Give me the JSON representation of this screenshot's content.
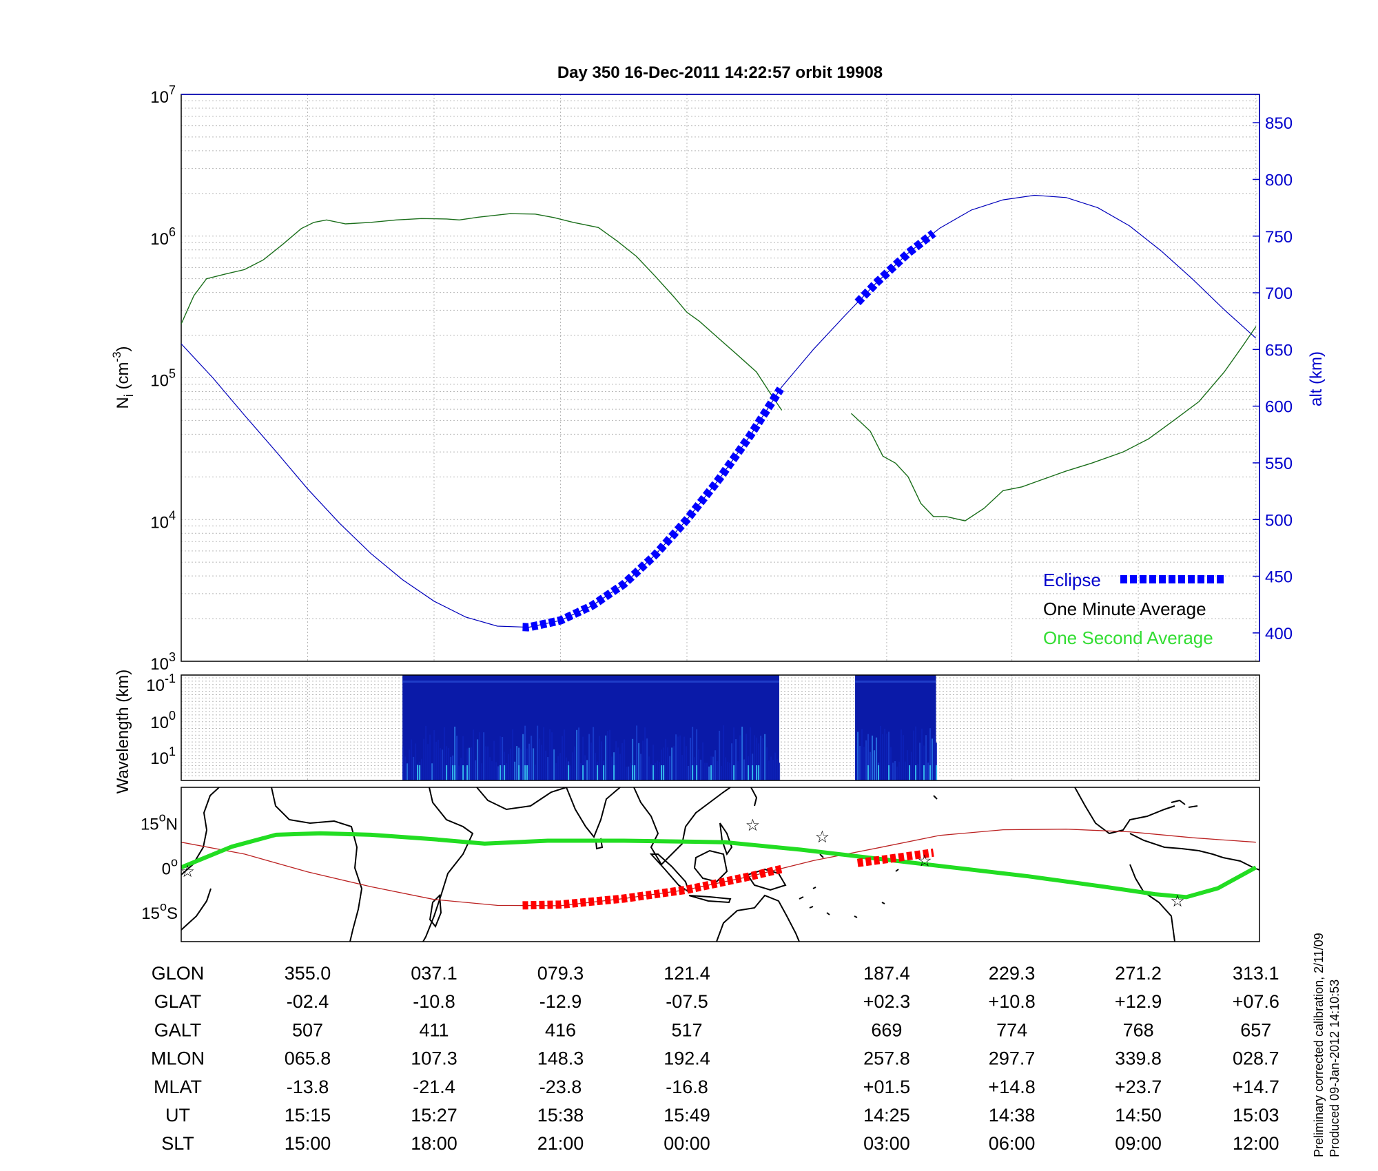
{
  "title": "Day 350  16-Dec-2011 14:22:57   orbit 19908",
  "colors": {
    "green_line": "#1a6e1a",
    "blue_line": "#0000bb",
    "eclipse": "#0000ff",
    "legend_green": "#33dd33",
    "track_green": "#22dd22",
    "track_red": "#bb2222",
    "eclipse_red": "#ff0000",
    "stars": "#cc33cc",
    "grid": "#b8b8b8",
    "axis_blue": "#0000cc"
  },
  "chart_data": [
    {
      "type": "line",
      "name": "Ni density and altitude",
      "y_left_label_base": "N",
      "y_left_label_sub": "i",
      "y_left_label_rest": " (cm",
      "y_left_label_sup": "-3",
      "y_left_label_end": ")",
      "y_left_scale": "log",
      "y_left_ticks": [
        {
          "base": "10",
          "exp": "3",
          "value": 1000
        },
        {
          "base": "10",
          "exp": "4",
          "value": 10000
        },
        {
          "base": "10",
          "exp": "5",
          "value": 100000
        },
        {
          "base": "10",
          "exp": "6",
          "value": 1000000
        },
        {
          "base": "10",
          "exp": "7",
          "value": 10000000
        }
      ],
      "y_right_label": "alt (km)",
      "y_right_ticks": [
        "400",
        "450",
        "500",
        "550",
        "600",
        "650",
        "700",
        "750",
        "800",
        "850"
      ],
      "y_right_range": [
        375,
        875
      ],
      "x_index_range": [
        0,
        8.5
      ],
      "grid": true,
      "legend_position": "bottom-right",
      "legend": [
        "Eclipse",
        "One Minute Average",
        "One Second Average"
      ],
      "density": [
        {
          "x": 0.0,
          "y": 240000
        },
        {
          "x": 0.1,
          "y": 380000
        },
        {
          "x": 0.2,
          "y": 500000
        },
        {
          "x": 0.35,
          "y": 540000
        },
        {
          "x": 0.5,
          "y": 580000
        },
        {
          "x": 0.65,
          "y": 680000
        },
        {
          "x": 0.8,
          "y": 870000
        },
        {
          "x": 0.95,
          "y": 1130000
        },
        {
          "x": 1.05,
          "y": 1250000
        },
        {
          "x": 1.15,
          "y": 1300000
        },
        {
          "x": 1.3,
          "y": 1220000
        },
        {
          "x": 1.5,
          "y": 1250000
        },
        {
          "x": 1.7,
          "y": 1300000
        },
        {
          "x": 1.9,
          "y": 1330000
        },
        {
          "x": 2.1,
          "y": 1320000
        },
        {
          "x": 2.2,
          "y": 1300000
        },
        {
          "x": 2.35,
          "y": 1360000
        },
        {
          "x": 2.6,
          "y": 1440000
        },
        {
          "x": 2.8,
          "y": 1430000
        },
        {
          "x": 2.95,
          "y": 1350000
        },
        {
          "x": 3.1,
          "y": 1250000
        },
        {
          "x": 3.3,
          "y": 1150000
        },
        {
          "x": 3.45,
          "y": 920000
        },
        {
          "x": 3.6,
          "y": 720000
        },
        {
          "x": 3.75,
          "y": 520000
        },
        {
          "x": 3.9,
          "y": 370000
        },
        {
          "x": 4.0,
          "y": 290000
        },
        {
          "x": 4.1,
          "y": 250000
        },
        {
          "x": 4.25,
          "y": 190000
        },
        {
          "x": 4.4,
          "y": 145000
        },
        {
          "x": 4.55,
          "y": 110000
        },
        {
          "x": 4.65,
          "y": 80000
        },
        {
          "x": 4.75,
          "y": 59000
        }
      ],
      "density_b": [
        {
          "x": 5.3,
          "y": 56000
        },
        {
          "x": 5.45,
          "y": 42000
        },
        {
          "x": 5.55,
          "y": 28000
        },
        {
          "x": 5.65,
          "y": 25000
        },
        {
          "x": 5.75,
          "y": 20000
        },
        {
          "x": 5.85,
          "y": 13000
        },
        {
          "x": 5.95,
          "y": 10500
        },
        {
          "x": 6.05,
          "y": 10500
        },
        {
          "x": 6.2,
          "y": 9800
        },
        {
          "x": 6.35,
          "y": 12000
        },
        {
          "x": 6.5,
          "y": 16000
        },
        {
          "x": 6.65,
          "y": 17000
        },
        {
          "x": 6.8,
          "y": 19000
        },
        {
          "x": 7.0,
          "y": 22000
        },
        {
          "x": 7.2,
          "y": 25000
        },
        {
          "x": 7.45,
          "y": 30000
        },
        {
          "x": 7.65,
          "y": 37000
        },
        {
          "x": 7.85,
          "y": 50000
        },
        {
          "x": 8.05,
          "y": 68000
        },
        {
          "x": 8.25,
          "y": 110000
        },
        {
          "x": 8.4,
          "y": 170000
        },
        {
          "x": 8.5,
          "y": 230000
        }
      ],
      "altitude_km": [
        {
          "x": 0.0,
          "y": 655
        },
        {
          "x": 0.25,
          "y": 625
        },
        {
          "x": 0.5,
          "y": 592
        },
        {
          "x": 0.75,
          "y": 560
        },
        {
          "x": 1.0,
          "y": 527
        },
        {
          "x": 1.25,
          "y": 497
        },
        {
          "x": 1.5,
          "y": 470
        },
        {
          "x": 1.75,
          "y": 447
        },
        {
          "x": 2.0,
          "y": 428
        },
        {
          "x": 2.25,
          "y": 414
        },
        {
          "x": 2.5,
          "y": 406
        },
        {
          "x": 2.75,
          "y": 405
        },
        {
          "x": 3.0,
          "y": 411
        },
        {
          "x": 3.25,
          "y": 424
        },
        {
          "x": 3.5,
          "y": 443
        },
        {
          "x": 3.75,
          "y": 469
        },
        {
          "x": 4.0,
          "y": 500
        },
        {
          "x": 4.25,
          "y": 535
        },
        {
          "x": 4.5,
          "y": 574
        },
        {
          "x": 4.75,
          "y": 617
        },
        {
          "x": 5.0,
          "y": 650
        },
        {
          "x": 5.25,
          "y": 680
        },
        {
          "x": 5.5,
          "y": 709
        },
        {
          "x": 5.75,
          "y": 735
        },
        {
          "x": 6.0,
          "y": 757
        },
        {
          "x": 6.25,
          "y": 773
        },
        {
          "x": 6.5,
          "y": 782
        },
        {
          "x": 6.75,
          "y": 786
        },
        {
          "x": 7.0,
          "y": 784
        },
        {
          "x": 7.25,
          "y": 775
        },
        {
          "x": 7.5,
          "y": 759
        },
        {
          "x": 7.75,
          "y": 737
        },
        {
          "x": 8.0,
          "y": 712
        },
        {
          "x": 8.25,
          "y": 685
        },
        {
          "x": 8.5,
          "y": 660
        }
      ],
      "eclipse_1": {
        "x_start": 2.7,
        "x_end": 4.75
      },
      "eclipse_2": {
        "x_start": 5.35,
        "x_end": 5.95
      }
    },
    {
      "type": "heatmap",
      "name": "wavelength spectrogram",
      "y_label": "Wavelength (km)",
      "y_ticks": [
        {
          "base": "10",
          "exp": "-1"
        },
        {
          "base": "10",
          "exp": "0"
        },
        {
          "base": "10",
          "exp": "1"
        }
      ],
      "data_blocks": [
        {
          "x_start": 1.75,
          "x_end": 4.73
        },
        {
          "x_start": 5.33,
          "x_end": 5.97
        }
      ]
    },
    {
      "type": "map",
      "name": "ground track",
      "lat_ticks": [
        {
          "value": "15",
          "deg": "o",
          "hem": "N",
          "lat": 15
        },
        {
          "value": "0",
          "deg": "o",
          "hem": "",
          "lat": 0
        },
        {
          "value": "15",
          "deg": "o",
          "hem": "S",
          "lat": -15
        }
      ],
      "lat_range": [
        -25,
        27
      ],
      "geomagnetic_track": [
        {
          "x": 0.0,
          "lat": 0
        },
        {
          "x": 0.4,
          "lat": 7
        },
        {
          "x": 0.75,
          "lat": 11
        },
        {
          "x": 1.1,
          "lat": 11.5
        },
        {
          "x": 1.5,
          "lat": 11
        },
        {
          "x": 2.0,
          "lat": 9.5
        },
        {
          "x": 2.4,
          "lat": 8
        },
        {
          "x": 2.9,
          "lat": 9
        },
        {
          "x": 3.5,
          "lat": 9
        },
        {
          "x": 4.3,
          "lat": 8.5
        },
        {
          "x": 4.9,
          "lat": 6
        },
        {
          "x": 5.5,
          "lat": 3
        },
        {
          "x": 6.1,
          "lat": 0
        },
        {
          "x": 6.7,
          "lat": -3
        },
        {
          "x": 7.3,
          "lat": -6.5
        },
        {
          "x": 7.7,
          "lat": -9
        },
        {
          "x": 7.95,
          "lat": -10
        },
        {
          "x": 8.2,
          "lat": -7
        },
        {
          "x": 8.5,
          "lat": 0
        }
      ],
      "geographic_track": [
        {
          "x": 0.0,
          "lat": 8.5
        },
        {
          "x": 0.5,
          "lat": 4.5
        },
        {
          "x": 1.0,
          "lat": -1.5
        },
        {
          "x": 1.5,
          "lat": -6.5
        },
        {
          "x": 2.0,
          "lat": -10.8
        },
        {
          "x": 2.5,
          "lat": -12.8
        },
        {
          "x": 3.0,
          "lat": -12.9
        },
        {
          "x": 3.5,
          "lat": -10.5
        },
        {
          "x": 4.0,
          "lat": -7.5
        },
        {
          "x": 4.5,
          "lat": -3
        },
        {
          "x": 5.0,
          "lat": 2.3
        },
        {
          "x": 5.5,
          "lat": 6.5
        },
        {
          "x": 6.0,
          "lat": 10.8
        },
        {
          "x": 6.5,
          "lat": 12.7
        },
        {
          "x": 7.0,
          "lat": 12.9
        },
        {
          "x": 7.5,
          "lat": 12
        },
        {
          "x": 8.0,
          "lat": 10
        },
        {
          "x": 8.5,
          "lat": 8.5
        }
      ],
      "red_eclipse_1": [
        {
          "x": 2.7,
          "lat": -12.8
        },
        {
          "x": 3.0,
          "lat": -12.5
        },
        {
          "x": 3.5,
          "lat": -10.5
        },
        {
          "x": 4.0,
          "lat": -7.5
        },
        {
          "x": 4.5,
          "lat": -3
        },
        {
          "x": 4.75,
          "lat": -0.5
        }
      ],
      "red_eclipse_2": [
        {
          "x": 5.35,
          "lat": 1.5
        },
        {
          "x": 5.65,
          "lat": 3.2
        },
        {
          "x": 5.95,
          "lat": 5
        }
      ],
      "stars": [
        {
          "x": 0.05,
          "lat": -1.5
        },
        {
          "x": 4.52,
          "lat": 14
        },
        {
          "x": 5.07,
          "lat": 10
        },
        {
          "x": 5.88,
          "lat": 2
        },
        {
          "x": 7.88,
          "lat": -11.5
        }
      ]
    }
  ],
  "table": {
    "row_labels": [
      "GLON",
      "GLAT",
      "GALT",
      "MLON",
      "MLAT",
      "UT",
      "SLT"
    ],
    "columns": [
      {
        "x": 1,
        "values": [
          "355.0",
          "-02.4",
          "507",
          "065.8",
          "-13.8",
          "15:15",
          "15:00"
        ]
      },
      {
        "x": 2,
        "values": [
          "037.1",
          "-10.8",
          "411",
          "107.3",
          "-21.4",
          "15:27",
          "18:00"
        ]
      },
      {
        "x": 3,
        "values": [
          "079.3",
          "-12.9",
          "416",
          "148.3",
          "-23.8",
          "15:38",
          "21:00"
        ]
      },
      {
        "x": 4,
        "values": [
          "121.4",
          "-07.5",
          "517",
          "192.4",
          "-16.8",
          "15:49",
          "00:00"
        ]
      },
      {
        "x": 5.58,
        "values": [
          "187.4",
          "+02.3",
          "669",
          "257.8",
          "+01.5",
          "14:25",
          "03:00"
        ]
      },
      {
        "x": 6.57,
        "values": [
          "229.3",
          "+10.8",
          "774",
          "297.7",
          "+14.8",
          "14:38",
          "06:00"
        ]
      },
      {
        "x": 7.57,
        "values": [
          "271.2",
          "+12.9",
          "768",
          "339.8",
          "+23.7",
          "14:50",
          "09:00"
        ]
      },
      {
        "x": 8.5,
        "values": [
          "313.1",
          "+07.6",
          "657",
          "028.7",
          "+14.7",
          "15:03",
          "12:00"
        ]
      }
    ]
  },
  "footnote_1": "Preliminary corrected calibration, 2/11/09",
  "footnote_2": "Produced 09-Jan-2012 14:10:53"
}
